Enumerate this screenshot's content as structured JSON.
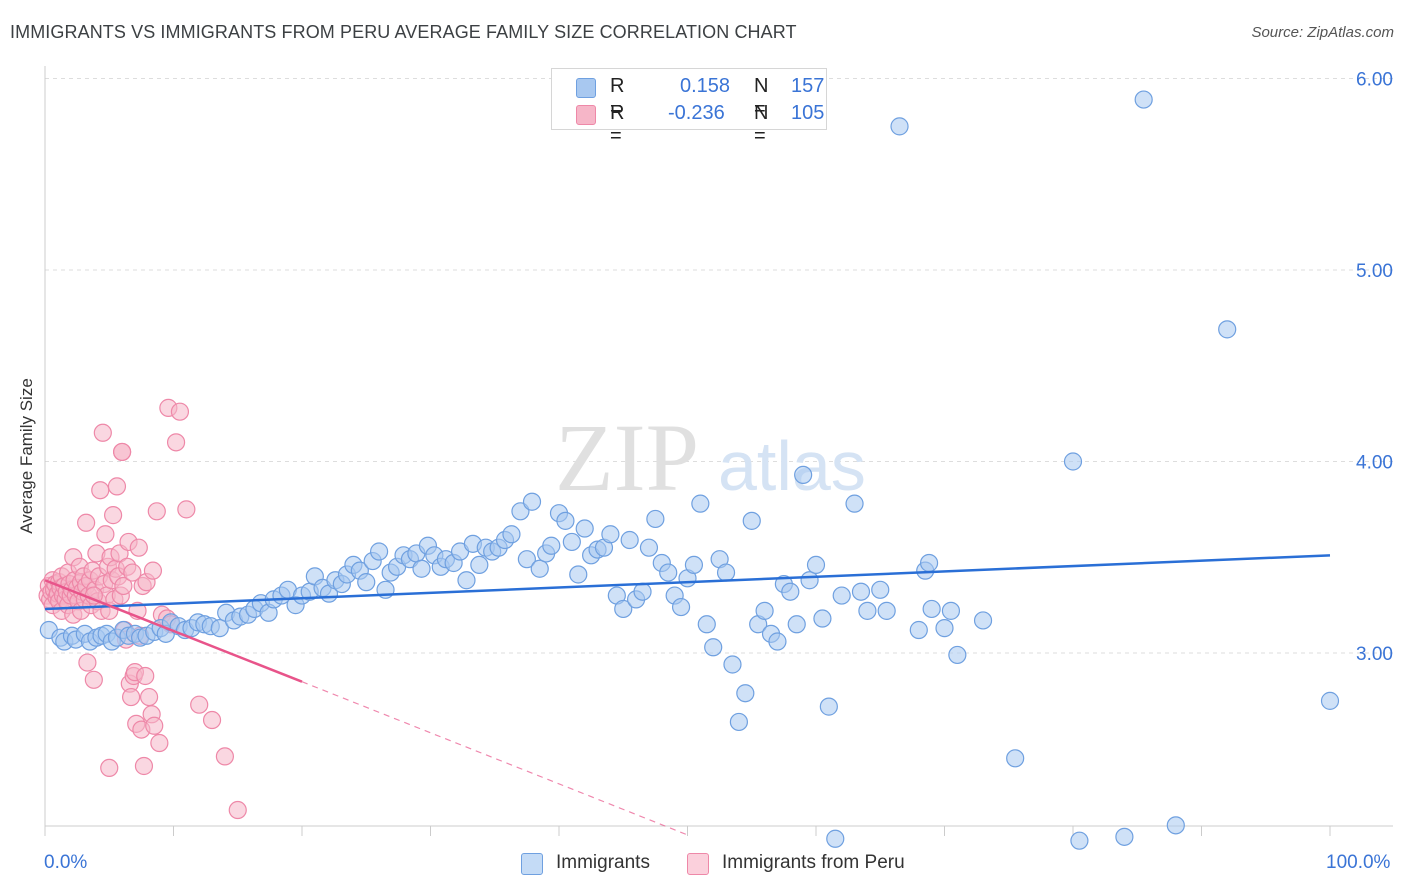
{
  "header": {
    "title": "IMMIGRANTS VS IMMIGRANTS FROM PERU AVERAGE FAMILY SIZE CORRELATION CHART",
    "source": "Source: ZipAtlas.com"
  },
  "watermark": {
    "zip": "ZIP",
    "atlas": "atlas"
  },
  "legend": {
    "rows": [
      {
        "r_label": "R =",
        "r_value": "0.158",
        "n_label": "N =",
        "n_value": "157",
        "color": "#a8c8f0"
      },
      {
        "r_label": "R =",
        "r_value": "-0.236",
        "n_label": "N =",
        "n_value": "105",
        "color": "#f6b6c8"
      }
    ]
  },
  "bottom_legend": {
    "series1": "Immigrants",
    "series2": "Immigrants from Peru"
  },
  "axes": {
    "ylabel": "Average Family Size",
    "x_min_label": "0.0%",
    "x_max_label": "100.0%",
    "y_ticks": [
      "3.00",
      "4.00",
      "5.00",
      "6.00"
    ]
  },
  "colors": {
    "blue_fill": "#a8c8f0",
    "blue_stroke": "#6fa0e0",
    "blue_line": "#2a6fd6",
    "pink_fill": "#f6b6c8",
    "pink_stroke": "#ee88a8",
    "pink_line": "#e8548a",
    "tick_label": "#3a74d6",
    "grid": "#dddddd"
  },
  "chart_data": {
    "type": "scatter",
    "title": "IMMIGRANTS VS IMMIGRANTS FROM PERU AVERAGE FAMILY SIZE CORRELATION CHART",
    "xlabel": "",
    "ylabel": "Average Family Size",
    "xlim": [
      0,
      100
    ],
    "ylim": [
      2.0,
      6.1
    ],
    "y_ticks": [
      3.0,
      4.0,
      5.0,
      6.0
    ],
    "grid": true,
    "legend_position": "top-center",
    "series": [
      {
        "name": "Immigrants",
        "r": 0.158,
        "n": 157,
        "trend": {
          "x": [
            0,
            100
          ],
          "y": [
            3.23,
            3.51
          ]
        },
        "points": [
          [
            0.3,
            3.12
          ],
          [
            1.2,
            3.08
          ],
          [
            1.5,
            3.06
          ],
          [
            2.1,
            3.09
          ],
          [
            2.4,
            3.07
          ],
          [
            3.1,
            3.1
          ],
          [
            3.5,
            3.06
          ],
          [
            4.0,
            3.08
          ],
          [
            4.4,
            3.09
          ],
          [
            4.8,
            3.1
          ],
          [
            5.2,
            3.06
          ],
          [
            5.6,
            3.08
          ],
          [
            6.1,
            3.12
          ],
          [
            6.5,
            3.09
          ],
          [
            7.0,
            3.1
          ],
          [
            7.4,
            3.08
          ],
          [
            7.9,
            3.09
          ],
          [
            8.5,
            3.11
          ],
          [
            9.0,
            3.13
          ],
          [
            9.4,
            3.1
          ],
          [
            9.8,
            3.16
          ],
          [
            10.4,
            3.14
          ],
          [
            10.9,
            3.12
          ],
          [
            11.4,
            3.13
          ],
          [
            11.9,
            3.16
          ],
          [
            12.4,
            3.15
          ],
          [
            12.9,
            3.14
          ],
          [
            13.6,
            3.13
          ],
          [
            14.1,
            3.21
          ],
          [
            14.7,
            3.17
          ],
          [
            15.2,
            3.19
          ],
          [
            15.8,
            3.2
          ],
          [
            16.3,
            3.23
          ],
          [
            16.8,
            3.26
          ],
          [
            17.4,
            3.21
          ],
          [
            17.8,
            3.28
          ],
          [
            18.4,
            3.3
          ],
          [
            18.9,
            3.33
          ],
          [
            19.5,
            3.25
          ],
          [
            20.0,
            3.3
          ],
          [
            20.6,
            3.32
          ],
          [
            21.0,
            3.4
          ],
          [
            21.6,
            3.34
          ],
          [
            22.1,
            3.31
          ],
          [
            22.6,
            3.38
          ],
          [
            23.1,
            3.36
          ],
          [
            23.5,
            3.41
          ],
          [
            24.0,
            3.46
          ],
          [
            24.5,
            3.43
          ],
          [
            25.0,
            3.37
          ],
          [
            25.5,
            3.48
          ],
          [
            26.0,
            3.53
          ],
          [
            26.5,
            3.33
          ],
          [
            26.9,
            3.42
          ],
          [
            27.4,
            3.45
          ],
          [
            27.9,
            3.51
          ],
          [
            28.4,
            3.49
          ],
          [
            28.9,
            3.52
          ],
          [
            29.3,
            3.44
          ],
          [
            29.8,
            3.56
          ],
          [
            30.3,
            3.51
          ],
          [
            30.8,
            3.45
          ],
          [
            31.2,
            3.49
          ],
          [
            31.8,
            3.47
          ],
          [
            32.3,
            3.53
          ],
          [
            32.8,
            3.38
          ],
          [
            33.3,
            3.57
          ],
          [
            33.8,
            3.46
          ],
          [
            34.3,
            3.55
          ],
          [
            34.8,
            3.53
          ],
          [
            35.3,
            3.55
          ],
          [
            35.8,
            3.59
          ],
          [
            36.3,
            3.62
          ],
          [
            37.0,
            3.74
          ],
          [
            37.5,
            3.49
          ],
          [
            37.9,
            3.79
          ],
          [
            38.5,
            3.44
          ],
          [
            39.0,
            3.52
          ],
          [
            39.4,
            3.56
          ],
          [
            40.0,
            3.73
          ],
          [
            40.5,
            3.69
          ],
          [
            41.0,
            3.58
          ],
          [
            41.5,
            3.41
          ],
          [
            42.0,
            3.65
          ],
          [
            42.5,
            3.51
          ],
          [
            43.0,
            3.54
          ],
          [
            43.5,
            3.55
          ],
          [
            44.0,
            3.62
          ],
          [
            44.5,
            3.3
          ],
          [
            45.0,
            3.23
          ],
          [
            45.5,
            3.59
          ],
          [
            46.0,
            3.28
          ],
          [
            46.5,
            3.32
          ],
          [
            47.0,
            3.55
          ],
          [
            47.5,
            3.7
          ],
          [
            48.0,
            3.47
          ],
          [
            48.5,
            3.42
          ],
          [
            49.0,
            3.3
          ],
          [
            49.5,
            3.24
          ],
          [
            50.0,
            3.39
          ],
          [
            50.5,
            3.46
          ],
          [
            51.0,
            3.78
          ],
          [
            51.5,
            3.15
          ],
          [
            52.0,
            3.03
          ],
          [
            52.5,
            3.49
          ],
          [
            53.0,
            3.42
          ],
          [
            53.5,
            2.94
          ],
          [
            54.0,
            2.64
          ],
          [
            54.5,
            2.79
          ],
          [
            55.0,
            3.69
          ],
          [
            55.5,
            3.15
          ],
          [
            56.0,
            3.22
          ],
          [
            56.5,
            3.1
          ],
          [
            57.0,
            3.06
          ],
          [
            57.5,
            3.36
          ],
          [
            58.0,
            3.32
          ],
          [
            58.5,
            3.15
          ],
          [
            59.0,
            3.93
          ],
          [
            59.5,
            3.38
          ],
          [
            60.0,
            3.46
          ],
          [
            60.5,
            3.18
          ],
          [
            61.0,
            2.72
          ],
          [
            62.0,
            3.3
          ],
          [
            63.0,
            3.78
          ],
          [
            63.5,
            3.32
          ],
          [
            64.0,
            3.22
          ],
          [
            65.0,
            3.33
          ],
          [
            65.5,
            3.22
          ],
          [
            66.5,
            5.75
          ],
          [
            68.0,
            3.12
          ],
          [
            68.5,
            3.43
          ],
          [
            68.8,
            3.47
          ],
          [
            69.0,
            3.23
          ],
          [
            70.0,
            3.13
          ],
          [
            70.5,
            3.22
          ],
          [
            71.0,
            2.99
          ],
          [
            73.0,
            3.17
          ],
          [
            75.5,
            2.45
          ],
          [
            80.0,
            4.0
          ],
          [
            84.0,
            2.04
          ],
          [
            85.5,
            5.89
          ],
          [
            88.0,
            2.1
          ],
          [
            92.0,
            4.69
          ],
          [
            100.0,
            2.75
          ],
          [
            61.5,
            2.03
          ],
          [
            80.5,
            2.02
          ]
        ]
      },
      {
        "name": "Immigrants from Peru",
        "r": -0.236,
        "n": 105,
        "trend": {
          "x": [
            0,
            20
          ],
          "y": [
            3.38,
            2.85
          ],
          "dashed_x": [
            20,
            50
          ],
          "dashed_y": [
            2.85,
            2.05
          ]
        },
        "points": [
          [
            0.2,
            3.3
          ],
          [
            0.3,
            3.35
          ],
          [
            0.4,
            3.28
          ],
          [
            0.5,
            3.32
          ],
          [
            0.6,
            3.38
          ],
          [
            0.6,
            3.25
          ],
          [
            0.7,
            3.33
          ],
          [
            0.8,
            3.36
          ],
          [
            0.9,
            3.29
          ],
          [
            1.0,
            3.31
          ],
          [
            1.1,
            3.37
          ],
          [
            1.1,
            3.27
          ],
          [
            1.2,
            3.34
          ],
          [
            1.3,
            3.22
          ],
          [
            1.3,
            3.4
          ],
          [
            1.4,
            3.3
          ],
          [
            1.5,
            3.35
          ],
          [
            1.6,
            3.28
          ],
          [
            1.7,
            3.32
          ],
          [
            1.8,
            3.42
          ],
          [
            1.8,
            3.25
          ],
          [
            1.9,
            3.36
          ],
          [
            2.0,
            3.3
          ],
          [
            2.1,
            3.33
          ],
          [
            2.2,
            3.5
          ],
          [
            2.2,
            3.2
          ],
          [
            2.3,
            3.38
          ],
          [
            2.4,
            3.3
          ],
          [
            2.5,
            3.34
          ],
          [
            2.6,
            3.27
          ],
          [
            2.7,
            3.45
          ],
          [
            2.8,
            3.37
          ],
          [
            2.8,
            3.22
          ],
          [
            2.9,
            3.32
          ],
          [
            3.0,
            3.4
          ],
          [
            3.1,
            3.28
          ],
          [
            3.2,
            3.68
          ],
          [
            3.2,
            3.35
          ],
          [
            3.3,
            2.95
          ],
          [
            3.4,
            3.3
          ],
          [
            3.5,
            3.38
          ],
          [
            3.6,
            3.25
          ],
          [
            3.7,
            3.43
          ],
          [
            3.8,
            2.86
          ],
          [
            3.9,
            3.33
          ],
          [
            4.0,
            3.52
          ],
          [
            4.1,
            3.27
          ],
          [
            4.2,
            3.4
          ],
          [
            4.3,
            3.85
          ],
          [
            4.4,
            3.22
          ],
          [
            4.5,
            4.15
          ],
          [
            4.6,
            3.36
          ],
          [
            4.7,
            3.62
          ],
          [
            4.8,
            3.3
          ],
          [
            4.9,
            3.45
          ],
          [
            5.0,
            3.22
          ],
          [
            5.1,
            3.5
          ],
          [
            5.2,
            3.38
          ],
          [
            5.3,
            3.72
          ],
          [
            5.4,
            3.28
          ],
          [
            5.5,
            3.44
          ],
          [
            5.6,
            3.87
          ],
          [
            5.7,
            3.4
          ],
          [
            5.8,
            3.52
          ],
          [
            5.9,
            3.3
          ],
          [
            6.0,
            4.05
          ],
          [
            6.1,
            3.35
          ],
          [
            6.2,
            3.12
          ],
          [
            6.3,
            3.07
          ],
          [
            6.4,
            3.45
          ],
          [
            6.5,
            3.58
          ],
          [
            6.6,
            2.84
          ],
          [
            6.7,
            2.77
          ],
          [
            6.8,
            3.42
          ],
          [
            6.9,
            2.88
          ],
          [
            7.0,
            2.9
          ],
          [
            7.1,
            2.63
          ],
          [
            7.2,
            3.22
          ],
          [
            7.3,
            3.55
          ],
          [
            7.4,
            3.09
          ],
          [
            7.5,
            2.6
          ],
          [
            7.6,
            3.35
          ],
          [
            7.7,
            2.41
          ],
          [
            7.8,
            2.88
          ],
          [
            7.9,
            3.37
          ],
          [
            8.1,
            2.77
          ],
          [
            8.3,
            2.68
          ],
          [
            8.4,
            3.43
          ],
          [
            8.5,
            2.62
          ],
          [
            8.7,
            3.74
          ],
          [
            8.9,
            2.53
          ],
          [
            9.1,
            3.2
          ],
          [
            9.5,
            3.18
          ],
          [
            9.6,
            4.28
          ],
          [
            9.8,
            3.15
          ],
          [
            10.2,
            4.1
          ],
          [
            10.5,
            4.26
          ],
          [
            11.0,
            3.75
          ],
          [
            12.0,
            2.73
          ],
          [
            13.0,
            2.65
          ],
          [
            14.0,
            2.46
          ],
          [
            15.0,
            2.18
          ],
          [
            5.0,
            2.4
          ],
          [
            6.0,
            4.05
          ],
          [
            3.8,
            3.3
          ]
        ]
      }
    ]
  }
}
